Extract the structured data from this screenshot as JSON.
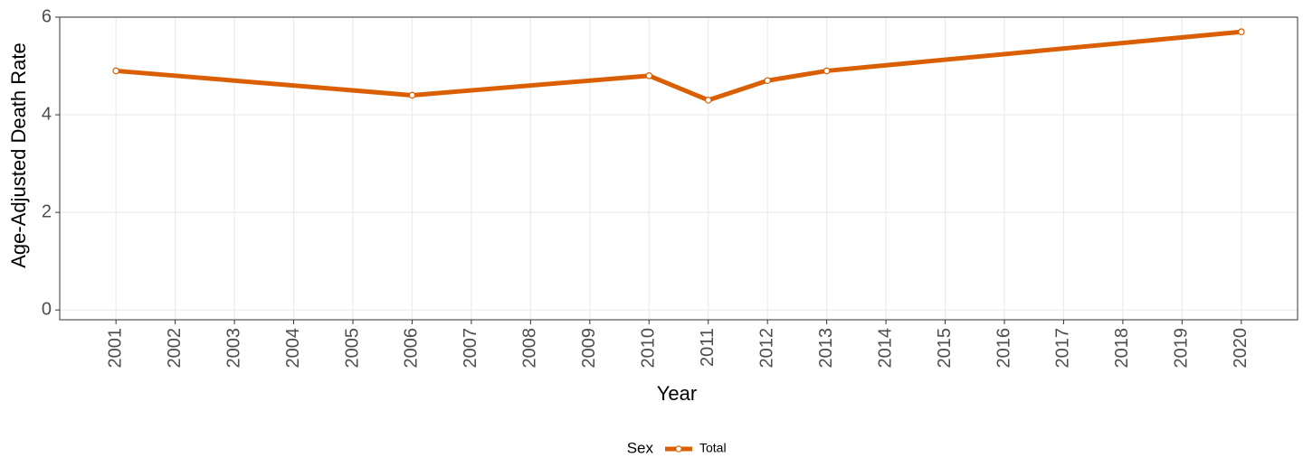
{
  "chart_data": {
    "type": "line",
    "x": [
      2001,
      2006,
      2010,
      2011,
      2012,
      2013,
      2020
    ],
    "series": [
      {
        "name": "Total",
        "color": "#d95f02",
        "values": [
          4.9,
          4.4,
          4.8,
          4.3,
          4.7,
          4.9,
          5.7
        ]
      }
    ],
    "xlim": [
      2000.05,
      2020.95
    ],
    "xticks": [
      2001,
      2002,
      2003,
      2004,
      2005,
      2006,
      2007,
      2008,
      2009,
      2010,
      2011,
      2012,
      2013,
      2014,
      2015,
      2016,
      2017,
      2018,
      2019,
      2020
    ],
    "ylim": [
      -0.2,
      6
    ],
    "yticks": [
      0,
      2,
      4,
      6
    ],
    "x_label": "Year",
    "y_label": "Age-Adjusted Death Rate",
    "legend_title": "Sex",
    "grid": true
  }
}
